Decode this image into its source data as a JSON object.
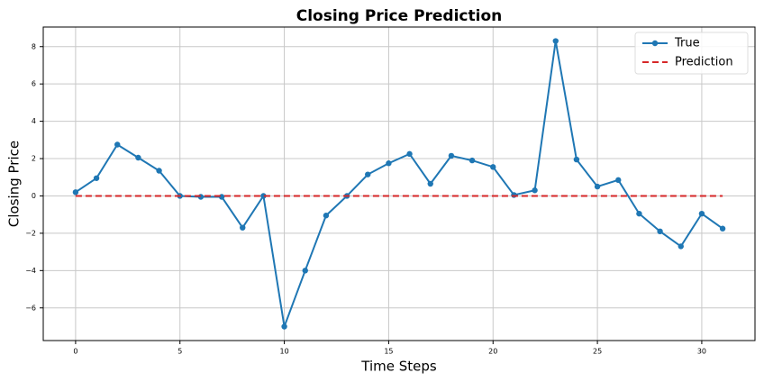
{
  "chart_data": {
    "type": "line",
    "title": "Closing Price Prediction",
    "x_label": "Time Steps",
    "y_label": "Closing Price",
    "x": [
      0,
      1,
      2,
      3,
      4,
      5,
      6,
      7,
      8,
      9,
      10,
      11,
      12,
      13,
      14,
      15,
      16,
      17,
      18,
      19,
      20,
      21,
      22,
      23,
      24,
      25,
      26,
      27,
      28,
      29,
      30,
      31
    ],
    "series": [
      {
        "name": "True",
        "color": "#1f77b4",
        "style": "solid",
        "marker": true,
        "values": [
          0.2,
          0.95,
          2.75,
          2.05,
          1.35,
          0.0,
          -0.05,
          -0.05,
          -1.7,
          0.0,
          -7.0,
          -4.0,
          -1.05,
          0.0,
          1.15,
          1.75,
          2.25,
          0.65,
          2.15,
          1.9,
          1.55,
          0.05,
          0.3,
          8.3,
          1.95,
          0.5,
          0.85,
          -0.95,
          -1.9,
          -2.7,
          -0.95,
          -1.75
        ]
      },
      {
        "name": "Prediction",
        "color": "#d62728",
        "style": "dashed",
        "marker": false,
        "values": [
          0,
          0,
          0,
          0,
          0,
          0,
          0,
          0,
          0,
          0,
          0,
          0,
          0,
          0,
          0,
          0,
          0,
          0,
          0,
          0,
          0,
          0,
          0,
          0,
          0,
          0,
          0,
          0,
          0,
          0,
          0,
          0
        ]
      }
    ],
    "xlim": [
      -1.55,
      32.55
    ],
    "ylim": [
      -7.75,
      9.05
    ],
    "xticks": [
      0,
      5,
      10,
      15,
      20,
      25,
      30
    ],
    "yticks": [
      {
        "value": -6,
        "label": "−6"
      },
      {
        "value": -4,
        "label": "−4"
      },
      {
        "value": -2,
        "label": "−2"
      },
      0,
      2,
      4,
      6,
      8
    ],
    "grid": true,
    "legend": "upper right"
  }
}
